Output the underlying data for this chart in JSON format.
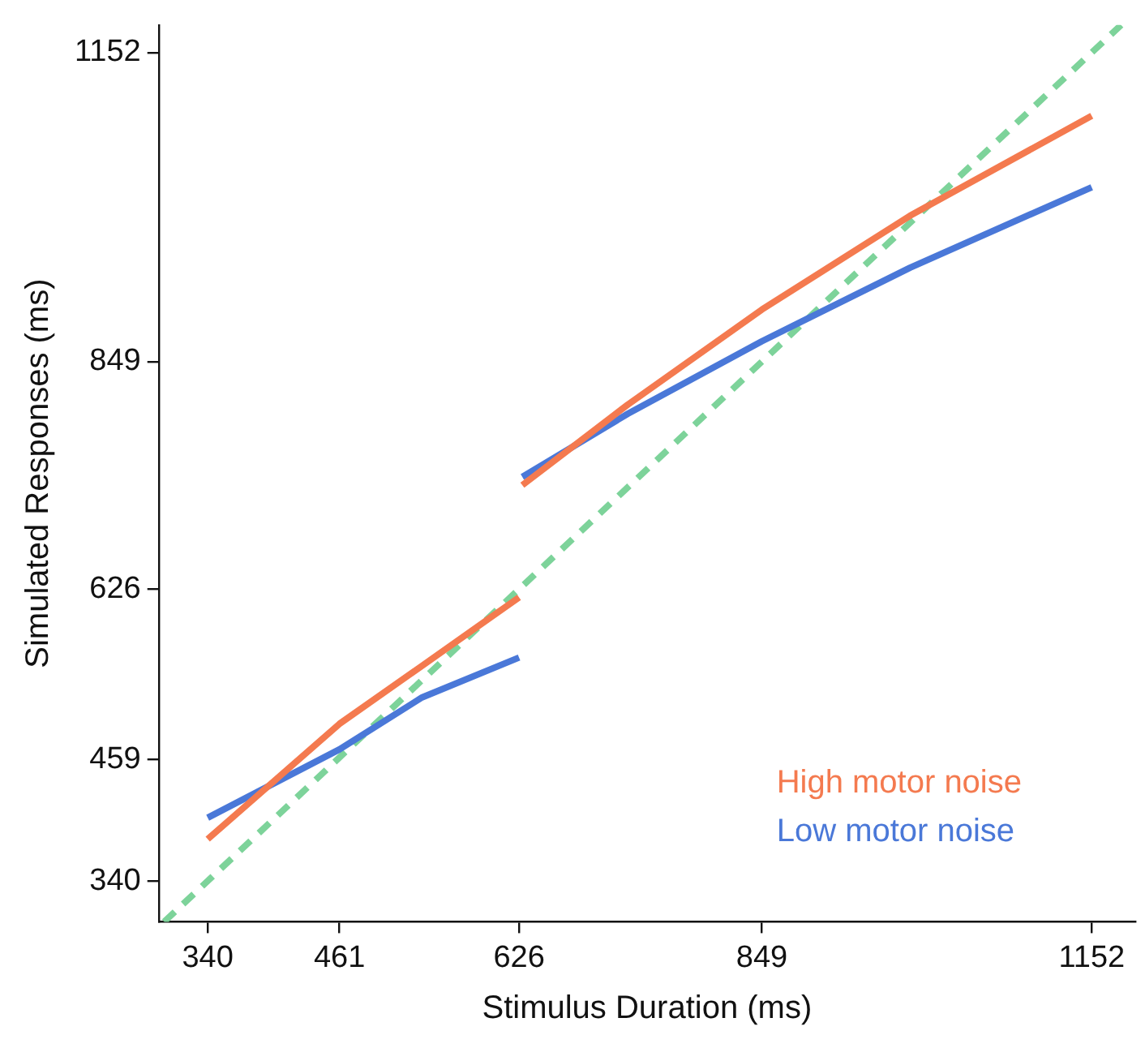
{
  "chart_data": {
    "type": "line",
    "xlabel": "Stimulus Duration (ms)",
    "ylabel": "Simulated Responses (ms)",
    "xlim": [
      295,
      1192
    ],
    "ylim": [
      300,
      1179
    ],
    "xticks": [
      340,
      461,
      626,
      849,
      1152
    ],
    "yticks": [
      340,
      459,
      626,
      849,
      1152
    ],
    "grid": false,
    "legend": "bottom right",
    "marker": "none",
    "series": [
      {
        "name": "High motor noise",
        "color": "#f47a4f",
        "x": [
          340,
          461,
          537,
          626,
          627,
          629,
          726,
          849,
          985,
          1152
        ],
        "values": [
          381,
          494,
          551,
          618,
          null,
          728,
          807,
          900,
          992,
          1090
        ]
      },
      {
        "name": "Low motor noise",
        "color": "#4a78d8",
        "x": [
          340,
          461,
          537,
          626,
          627,
          629,
          726,
          849,
          985,
          1152
        ],
        "values": [
          402,
          469,
          520,
          559,
          null,
          736,
          798,
          869,
          941,
          1020
        ]
      },
      {
        "color": "#7dd39a",
        "line_style": "dashed",
        "x": [
          300,
          1179
        ],
        "values": [
          300,
          1179
        ]
      }
    ]
  }
}
